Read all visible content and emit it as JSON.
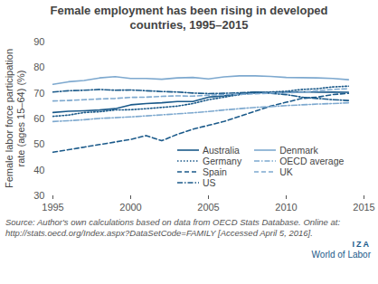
{
  "chart_data": {
    "type": "line",
    "title": "Female employment has been rising in developed countries, 1995–2015",
    "y_label": "Female labor force participation rate (ages 15–64) (%)",
    "x": [
      1995,
      1996,
      1997,
      1998,
      1999,
      2000,
      2001,
      2002,
      2003,
      2004,
      2005,
      2006,
      2007,
      2008,
      2009,
      2010,
      2011,
      2012,
      2013,
      2014
    ],
    "series": [
      {
        "name": "Australia",
        "color": "#1b5a8a",
        "line_style": "solid",
        "values": [
          62.5,
          63,
          63.2,
          63.5,
          64,
          65.5,
          66,
          66.3,
          66.8,
          66.8,
          68.5,
          69,
          69.8,
          70.5,
          70.3,
          70.4,
          70.6,
          70.4,
          70.5,
          70.4
        ]
      },
      {
        "name": "Germany",
        "color": "#1b5a8a",
        "line_style": "dotted",
        "values": [
          61,
          61.5,
          62.5,
          62.8,
          63.5,
          63.6,
          64,
          64.5,
          65,
          66,
          67.5,
          68.5,
          69.5,
          70.1,
          70.5,
          70.8,
          71.5,
          71.8,
          72.5,
          72.8
        ]
      },
      {
        "name": "Spain",
        "color": "#1b5a8a",
        "line_style": "dashed",
        "values": [
          47,
          48,
          49,
          50,
          51,
          52,
          53.5,
          51.5,
          54,
          56,
          57.5,
          59,
          61,
          63,
          65,
          66.5,
          68,
          68.5,
          69.5,
          70
        ]
      },
      {
        "name": "US",
        "color": "#1b5a8a",
        "line_style": "dashdot",
        "values": [
          70.5,
          71,
          71.2,
          71.5,
          71.2,
          71.3,
          71,
          70.7,
          70.5,
          70.1,
          69.9,
          70,
          70.2,
          70.5,
          70,
          69.5,
          68.5,
          68,
          67.5,
          67.2
        ]
      },
      {
        "name": "Denmark",
        "color": "#7ea9cf",
        "line_style": "solid",
        "values": [
          73.5,
          74.5,
          75,
          76,
          76.5,
          75.8,
          75.8,
          75.5,
          76,
          76.2,
          75.6,
          76.4,
          76.8,
          76.8,
          76.6,
          76.2,
          76.1,
          76,
          75.8,
          75.3
        ]
      },
      {
        "name": "OECD average",
        "color": "#7ea9cf",
        "line_style": "dashdot",
        "values": [
          59,
          59.3,
          59.7,
          60.2,
          60.5,
          60.8,
          61.2,
          61.6,
          62,
          62.4,
          62.9,
          63.5,
          64,
          64.5,
          64.8,
          65.2,
          65.5,
          65.8,
          66,
          66.3
        ]
      },
      {
        "name": "UK",
        "color": "#7ea9cf",
        "line_style": "dashed",
        "values": [
          67,
          67.2,
          67.5,
          67.8,
          68,
          68.4,
          68.5,
          68.8,
          69,
          68.9,
          69.3,
          69.5,
          69.6,
          69.8,
          70.1,
          70.2,
          70.4,
          71,
          71.5,
          71.8
        ]
      }
    ],
    "xlim": [
      1995,
      2015
    ],
    "xticks": [
      1995,
      2000,
      2005,
      2010,
      2015
    ],
    "ylim": [
      30,
      90
    ],
    "yticks": [
      30,
      40,
      50,
      60,
      70,
      80,
      90
    ],
    "grid": false,
    "legend": "bottom-right",
    "caption": "Source: Author's own calculations based on data from OECD Stats Database. Online at: http://stats.oecd.org/Index.aspx?DataSetCode=FAMILY [Accessed April 5, 2016].",
    "annotations": [
      "IZA",
      "World of Labor"
    ]
  }
}
